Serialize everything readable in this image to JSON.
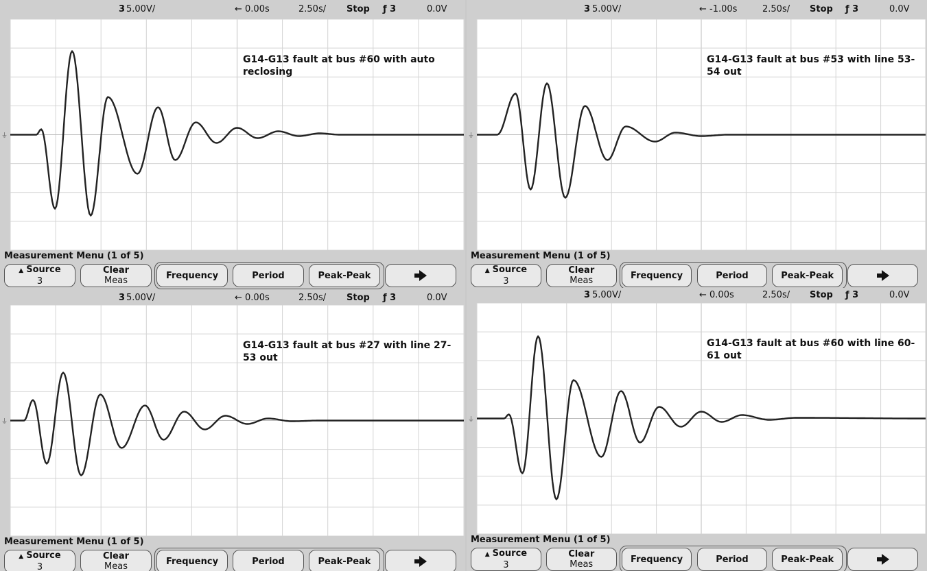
{
  "panels": [
    {
      "header": {
        "channel": "3",
        "volts": "5.00V/",
        "delay": "← 0.00s",
        "timebase": "2.50s/",
        "run_state": "Stop",
        "trigger": "ƒ 3",
        "level": "0.0V"
      },
      "note": "G14-G13 fault at bus #60 with auto reclosing",
      "menu": {
        "title": "Measurement Menu (1 of 5)",
        "buttons": [
          {
            "label": "Source",
            "sub": "3"
          },
          {
            "label": "Clear",
            "sub": "Meas"
          },
          {
            "label": "Frequency"
          },
          {
            "label": "Period"
          },
          {
            "label": "Peak-Peak"
          }
        ]
      }
    },
    {
      "header": {
        "channel": "3",
        "volts": "5.00V/",
        "delay": "← -1.00s",
        "timebase": "2.50s/",
        "run_state": "Stop",
        "trigger": "ƒ 3",
        "level": "0.0V"
      },
      "note": "G14-G13 fault at bus #53 with line 53-54 out",
      "menu": {
        "title": "Measurement Menu (1 of 5)",
        "buttons": [
          {
            "label": "Source",
            "sub": "3"
          },
          {
            "label": "Clear",
            "sub": "Meas"
          },
          {
            "label": "Frequency"
          },
          {
            "label": "Period"
          },
          {
            "label": "Peak-Peak"
          }
        ]
      }
    },
    {
      "header": {
        "channel": "3",
        "volts": "5.00V/",
        "delay": "← 0.00s",
        "timebase": "2.50s/",
        "run_state": "Stop",
        "trigger": "ƒ 3",
        "level": "0.0V"
      },
      "note": "G14-G13 fault at bus #27 with line 27-53 out",
      "menu": {
        "title": "Measurement Menu (1 of 5)",
        "buttons": [
          {
            "label": "Source",
            "sub": "3"
          },
          {
            "label": "Clear",
            "sub": "Meas"
          },
          {
            "label": "Frequency"
          },
          {
            "label": "Period"
          },
          {
            "label": "Peak-Peak"
          }
        ]
      }
    },
    {
      "header": {
        "channel": "3",
        "volts": "5.00V/",
        "delay": "← 0.00s",
        "timebase": "2.50s/",
        "run_state": "Stop",
        "trigger": "ƒ 3",
        "level": "0.0V"
      },
      "note": "G14-G13 fault at bus #60 with line 60-61 out",
      "menu": {
        "title": "Measurement Menu (1 of 5)",
        "buttons": [
          {
            "label": "Source",
            "sub": "3"
          },
          {
            "label": "Clear",
            "sub": "Meas"
          },
          {
            "label": "Frequency"
          },
          {
            "label": "Period"
          },
          {
            "label": "Peak-Peak"
          }
        ]
      }
    }
  ]
}
